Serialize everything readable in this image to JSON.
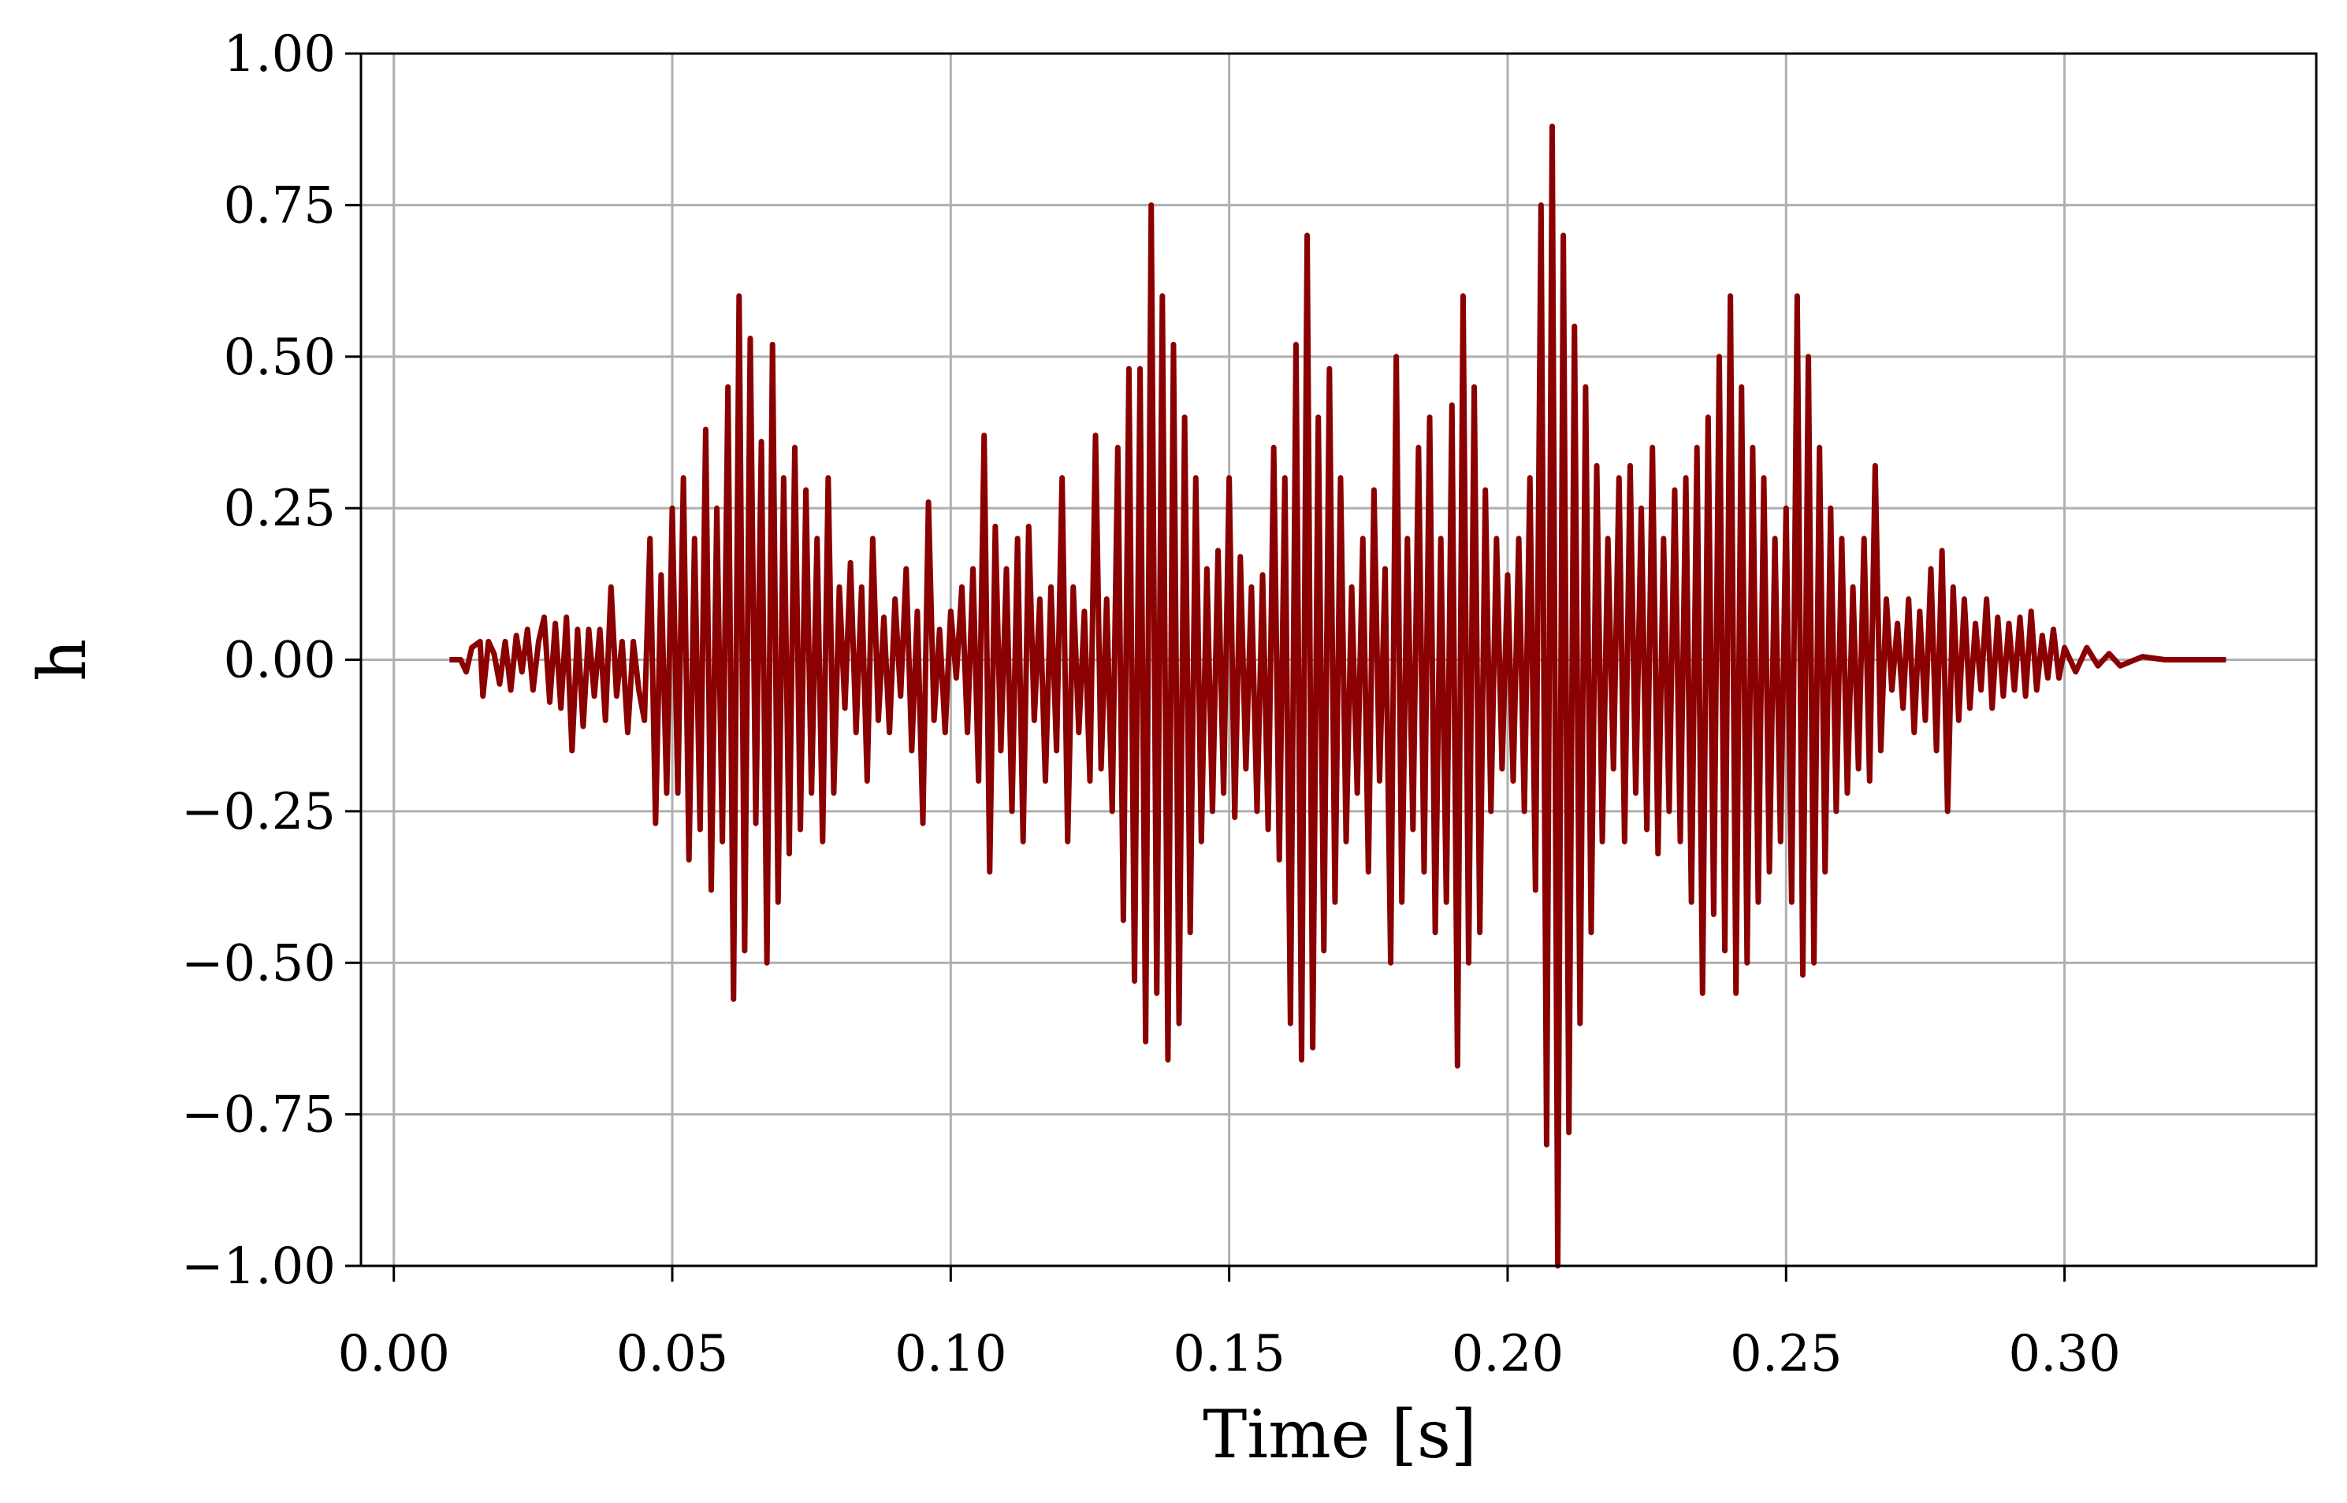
{
  "chart_data": {
    "type": "line",
    "xlabel": "Time [s]",
    "ylabel": "h",
    "color": "#8b0000",
    "grid": true,
    "xlim": [
      -0.0059,
      0.3452
    ],
    "ylim": [
      -1,
      1
    ],
    "xticks": [
      {
        "value": 0,
        "label": "0.00"
      },
      {
        "value": 0.05,
        "label": "0.05"
      },
      {
        "value": 0.1,
        "label": "0.10"
      },
      {
        "value": 0.15,
        "label": "0.15"
      },
      {
        "value": 0.2,
        "label": "0.20"
      },
      {
        "value": 0.25,
        "label": "0.25"
      },
      {
        "value": 0.3,
        "label": "0.30"
      }
    ],
    "yticks": [
      {
        "value": -1,
        "label": "−1.00"
      },
      {
        "value": -0.75,
        "label": "−0.75"
      },
      {
        "value": -0.5,
        "label": "−0.50"
      },
      {
        "value": -0.25,
        "label": "−0.25"
      },
      {
        "value": 0,
        "label": "0.00"
      },
      {
        "value": 0.25,
        "label": "0.25"
      },
      {
        "value": 0.5,
        "label": "0.50"
      },
      {
        "value": 0.75,
        "label": "0.75"
      },
      {
        "value": 1,
        "label": "1.00"
      }
    ],
    "x": [
      0.01,
      0.012,
      0.013,
      0.014,
      0.0155,
      0.016,
      0.017,
      0.018,
      0.019,
      0.02,
      0.021,
      0.022,
      0.023,
      0.024,
      0.025,
      0.026,
      0.027,
      0.028,
      0.029,
      0.03,
      0.031,
      0.032,
      0.033,
      0.034,
      0.035,
      0.036,
      0.037,
      0.038,
      0.039,
      0.04,
      0.041,
      0.042,
      0.043,
      0.044,
      0.045,
      0.046,
      0.047,
      0.048,
      0.049,
      0.05,
      0.051,
      0.052,
      0.053,
      0.054,
      0.055,
      0.056,
      0.057,
      0.058,
      0.059,
      0.06,
      0.061,
      0.062,
      0.063,
      0.064,
      0.065,
      0.066,
      0.067,
      0.068,
      0.069,
      0.07,
      0.071,
      0.072,
      0.073,
      0.074,
      0.075,
      0.076,
      0.077,
      0.078,
      0.079,
      0.08,
      0.081,
      0.082,
      0.083,
      0.084,
      0.085,
      0.086,
      0.087,
      0.088,
      0.089,
      0.09,
      0.091,
      0.092,
      0.093,
      0.094,
      0.095,
      0.096,
      0.097,
      0.098,
      0.099,
      0.1,
      0.101,
      0.102,
      0.103,
      0.104,
      0.105,
      0.106,
      0.107,
      0.108,
      0.109,
      0.11,
      0.111,
      0.112,
      0.113,
      0.114,
      0.115,
      0.116,
      0.117,
      0.118,
      0.119,
      0.12,
      0.121,
      0.122,
      0.123,
      0.124,
      0.125,
      0.126,
      0.127,
      0.128,
      0.129,
      0.13,
      0.131,
      0.132,
      0.133,
      0.134,
      0.135,
      0.136,
      0.137,
      0.138,
      0.139,
      0.14,
      0.141,
      0.142,
      0.143,
      0.144,
      0.145,
      0.146,
      0.147,
      0.148,
      0.149,
      0.15,
      0.151,
      0.152,
      0.153,
      0.154,
      0.155,
      0.156,
      0.157,
      0.158,
      0.159,
      0.16,
      0.161,
      0.162,
      0.163,
      0.164,
      0.165,
      0.166,
      0.167,
      0.168,
      0.169,
      0.17,
      0.171,
      0.172,
      0.173,
      0.174,
      0.175,
      0.176,
      0.177,
      0.178,
      0.179,
      0.18,
      0.181,
      0.182,
      0.183,
      0.184,
      0.185,
      0.186,
      0.187,
      0.188,
      0.189,
      0.19,
      0.191,
      0.192,
      0.193,
      0.194,
      0.195,
      0.196,
      0.197,
      0.198,
      0.199,
      0.2,
      0.201,
      0.202,
      0.203,
      0.204,
      0.205,
      0.206,
      0.207,
      0.208,
      0.209,
      0.21,
      0.211,
      0.212,
      0.213,
      0.214,
      0.215,
      0.216,
      0.217,
      0.218,
      0.219,
      0.22,
      0.221,
      0.222,
      0.223,
      0.224,
      0.225,
      0.226,
      0.227,
      0.228,
      0.229,
      0.23,
      0.231,
      0.232,
      0.233,
      0.234,
      0.235,
      0.236,
      0.237,
      0.238,
      0.239,
      0.24,
      0.241,
      0.242,
      0.243,
      0.244,
      0.245,
      0.246,
      0.247,
      0.248,
      0.249,
      0.25,
      0.251,
      0.252,
      0.253,
      0.254,
      0.255,
      0.256,
      0.257,
      0.258,
      0.259,
      0.26,
      0.261,
      0.262,
      0.263,
      0.264,
      0.265,
      0.266,
      0.267,
      0.268,
      0.269,
      0.27,
      0.271,
      0.272,
      0.273,
      0.274,
      0.275,
      0.276,
      0.277,
      0.278,
      0.279,
      0.28,
      0.281,
      0.282,
      0.283,
      0.284,
      0.285,
      0.286,
      0.287,
      0.288,
      0.289,
      0.29,
      0.291,
      0.292,
      0.293,
      0.294,
      0.295,
      0.296,
      0.297,
      0.298,
      0.299,
      0.3,
      0.302,
      0.304,
      0.306,
      0.308,
      0.31,
      0.314,
      0.318,
      0.322,
      0.329
    ],
    "values": [
      0,
      0,
      -0.02,
      0.02,
      0.03,
      -0.06,
      0.03,
      0.01,
      -0.04,
      0.03,
      -0.05,
      0.04,
      -0.02,
      0.05,
      -0.05,
      0.03,
      0.07,
      -0.07,
      0.06,
      -0.08,
      0.07,
      -0.15,
      0.05,
      -0.11,
      0.05,
      -0.06,
      0.05,
      -0.1,
      0.12,
      -0.06,
      0.03,
      -0.12,
      0.03,
      -0.05,
      -0.1,
      0.2,
      -0.27,
      0.14,
      -0.22,
      0.25,
      -0.22,
      0.3,
      -0.33,
      0.2,
      -0.28,
      0.38,
      -0.38,
      0.25,
      -0.3,
      0.45,
      -0.56,
      0.6,
      -0.48,
      0.53,
      -0.27,
      0.36,
      -0.5,
      0.52,
      -0.4,
      0.3,
      -0.32,
      0.35,
      -0.28,
      0.28,
      -0.22,
      0.2,
      -0.3,
      0.3,
      -0.22,
      0.12,
      -0.08,
      0.16,
      -0.12,
      0.12,
      -0.2,
      0.2,
      -0.1,
      0.07,
      -0.12,
      0.1,
      -0.06,
      0.15,
      -0.15,
      0.08,
      -0.27,
      0.26,
      -0.1,
      0.05,
      -0.12,
      0.08,
      -0.03,
      0.12,
      -0.12,
      0.15,
      -0.2,
      0.37,
      -0.35,
      0.22,
      -0.15,
      0.15,
      -0.25,
      0.2,
      -0.3,
      0.22,
      -0.1,
      0.1,
      -0.2,
      0.12,
      -0.15,
      0.3,
      -0.3,
      0.12,
      -0.12,
      0.08,
      -0.2,
      0.37,
      -0.18,
      0.1,
      -0.25,
      0.35,
      -0.43,
      0.48,
      -0.53,
      0.48,
      -0.63,
      0.75,
      -0.55,
      0.6,
      -0.66,
      0.52,
      -0.6,
      0.4,
      -0.45,
      0.3,
      -0.3,
      0.15,
      -0.25,
      0.18,
      -0.22,
      0.3,
      -0.26,
      0.17,
      -0.18,
      0.12,
      -0.25,
      0.14,
      -0.28,
      0.35,
      -0.33,
      0.3,
      -0.6,
      0.52,
      -0.66,
      0.7,
      -0.64,
      0.4,
      -0.48,
      0.48,
      -0.4,
      0.3,
      -0.3,
      0.12,
      -0.22,
      0.2,
      -0.35,
      0.28,
      -0.2,
      0.15,
      -0.5,
      0.5,
      -0.4,
      0.2,
      -0.28,
      0.35,
      -0.35,
      0.4,
      -0.45,
      0.2,
      -0.4,
      0.42,
      -0.67,
      0.6,
      -0.5,
      0.45,
      -0.45,
      0.28,
      -0.25,
      0.2,
      -0.18,
      0.14,
      -0.2,
      0.2,
      -0.25,
      0.3,
      -0.38,
      0.75,
      -0.8,
      0.88,
      -1.0,
      0.7,
      -0.78,
      0.55,
      -0.6,
      0.45,
      -0.45,
      0.32,
      -0.3,
      0.2,
      -0.18,
      0.3,
      -0.3,
      0.32,
      -0.22,
      0.25,
      -0.28,
      0.35,
      -0.32,
      0.2,
      -0.25,
      0.28,
      -0.3,
      0.3,
      -0.4,
      0.35,
      -0.55,
      0.4,
      -0.42,
      0.5,
      -0.48,
      0.6,
      -0.55,
      0.45,
      -0.5,
      0.35,
      -0.4,
      0.3,
      -0.35,
      0.2,
      -0.3,
      0.25,
      -0.4,
      0.6,
      -0.52,
      0.5,
      -0.5,
      0.35,
      -0.35,
      0.25,
      -0.25,
      0.2,
      -0.22,
      0.12,
      -0.18,
      0.2,
      -0.2,
      0.32,
      -0.15,
      0.1,
      -0.05,
      0.06,
      -0.08,
      0.1,
      -0.12,
      0.08,
      -0.1,
      0.15,
      -0.15,
      0.18,
      -0.25,
      0.12,
      -0.1,
      0.1,
      -0.08,
      0.06,
      -0.05,
      0.1,
      -0.08,
      0.07,
      -0.06,
      0.06,
      -0.05,
      0.07,
      -0.06,
      0.08,
      -0.05,
      0.04,
      -0.03,
      0.05,
      -0.03,
      0.02,
      -0.02,
      0.02,
      -0.01,
      0.01,
      -0.01,
      0.005,
      0,
      0,
      0
    ]
  }
}
